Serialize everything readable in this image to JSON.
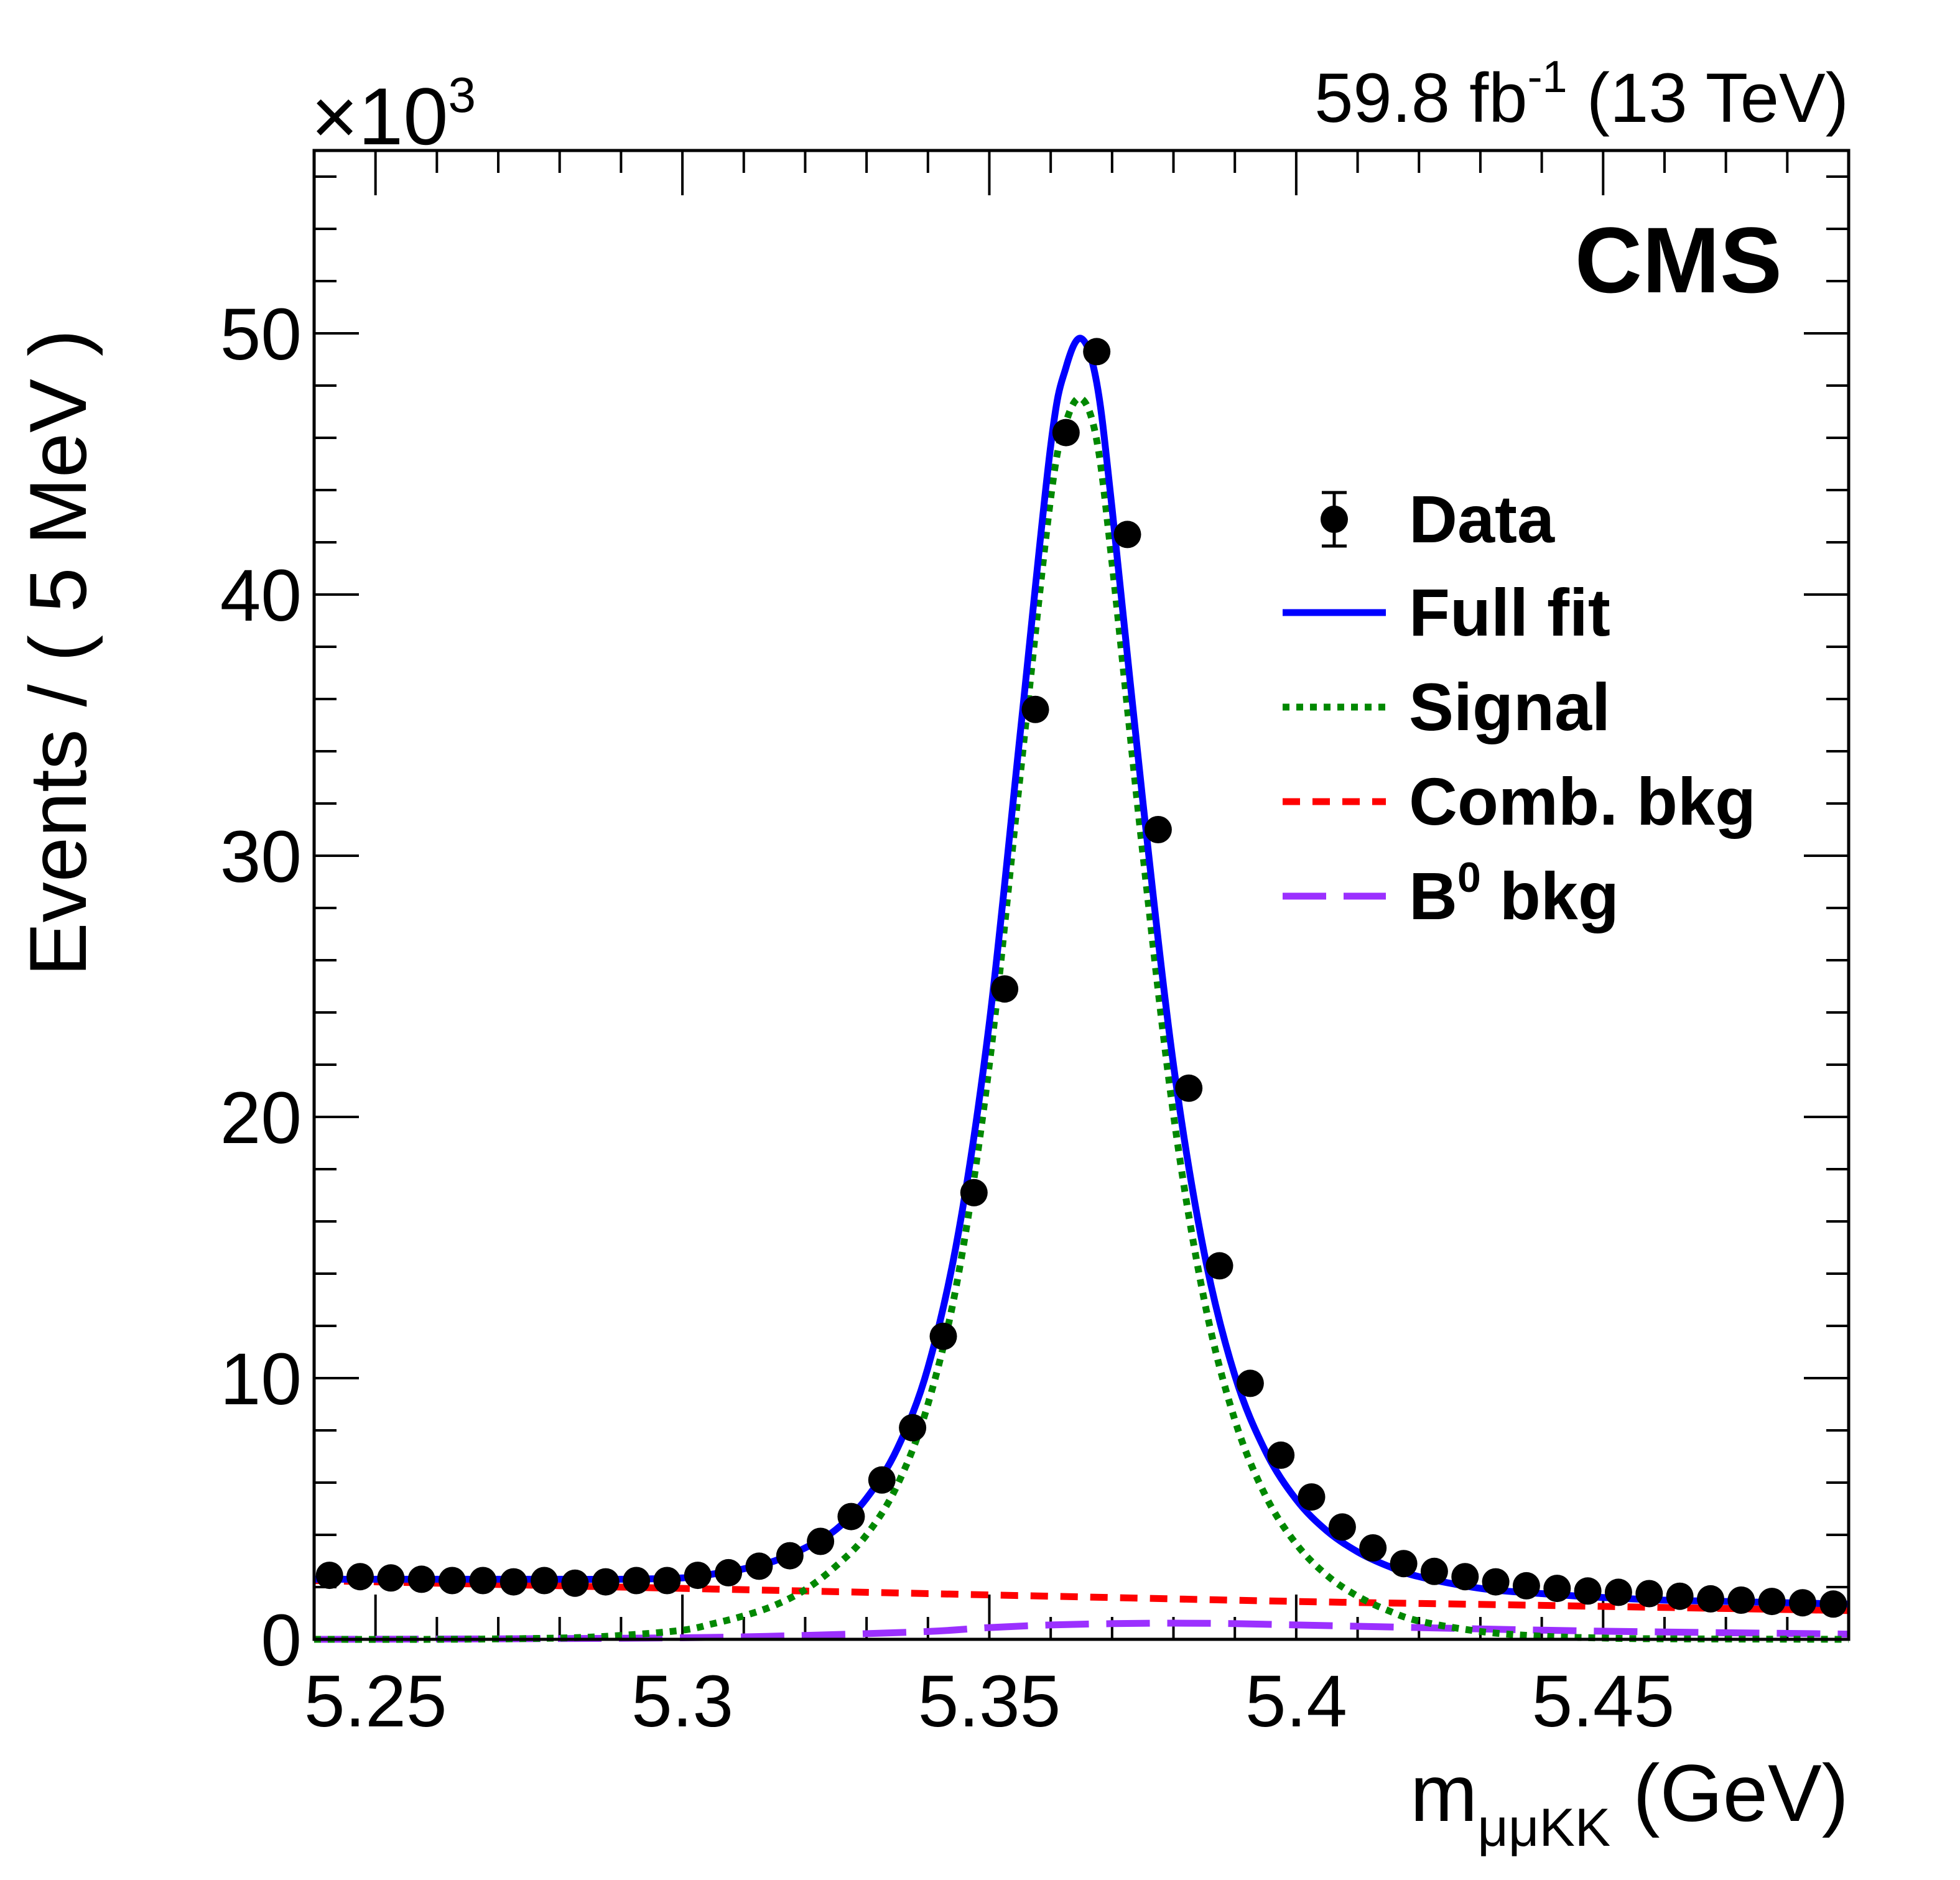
{
  "header": {
    "multiplier": "×10",
    "multiplier_exp": "3",
    "lumi_value": "59.8 fb",
    "lumi_exp": "-1",
    "lumi_energy": "(13 TeV)",
    "experiment": "CMS"
  },
  "colors": {
    "data": "#000000",
    "full_fit": "#0000ff",
    "signal": "#008800",
    "comb_bkg": "#ff0000",
    "b0_bkg": "#9b30ff"
  },
  "legend": {
    "placement": "top-right",
    "data": "Data",
    "full_fit": "Full fit",
    "signal": "Signal",
    "comb_bkg": "Comb. bkg",
    "b0_bkg_main": "B",
    "b0_bkg_sup": "0",
    "b0_bkg_rest": " bkg"
  },
  "chart_data": {
    "type": "scatter",
    "xlabel_main": "m",
    "xlabel_sub": "μμKK",
    "xlabel_unit": " (GeV)",
    "ylabel": "Events / ( 5 MeV )",
    "xlim": [
      5.24,
      5.49
    ],
    "ylim": [
      0,
      57
    ],
    "y_multiplier": 1000,
    "x_ticks": [
      5.25,
      5.3,
      5.35,
      5.4,
      5.45
    ],
    "x_tick_labels": [
      "5.25",
      "5.3",
      "5.35",
      "5.4",
      "5.45"
    ],
    "y_ticks": [
      0,
      10,
      20,
      30,
      40,
      50
    ],
    "y_tick_labels": [
      "0",
      "10",
      "20",
      "30",
      "40",
      "50"
    ],
    "grid": false,
    "series": [
      {
        "name": "Data",
        "kind": "points",
        "x": [
          5.2425,
          5.2475,
          5.2525,
          5.2575,
          5.2625,
          5.2675,
          5.2725,
          5.2775,
          5.2825,
          5.2875,
          5.2925,
          5.2975,
          5.3025,
          5.3075,
          5.3125,
          5.3175,
          5.3225,
          5.3275,
          5.3325,
          5.3375,
          5.3425,
          5.3475,
          5.3525,
          5.3575,
          5.3625,
          5.3675,
          5.3725,
          5.3775,
          5.3825,
          5.3875,
          5.3925,
          5.3975,
          5.4025,
          5.4075,
          5.4125,
          5.4175,
          5.4225,
          5.4275,
          5.4325,
          5.4375,
          5.4425,
          5.4475,
          5.4525,
          5.4575,
          5.4625,
          5.4675,
          5.4725,
          5.4775,
          5.4825,
          5.4875
        ],
        "y": [
          2.45,
          2.4,
          2.35,
          2.3,
          2.25,
          2.25,
          2.2,
          2.25,
          2.15,
          2.2,
          2.25,
          2.25,
          2.45,
          2.55,
          2.8,
          3.2,
          3.75,
          4.7,
          6.1,
          8.1,
          11.6,
          17.1,
          24.9,
          35.6,
          46.2,
          49.3,
          42.3,
          31.0,
          21.1,
          14.3,
          9.8,
          7.05,
          5.45,
          4.3,
          3.5,
          2.9,
          2.6,
          2.4,
          2.2,
          2.05,
          1.95,
          1.85,
          1.8,
          1.75,
          1.65,
          1.55,
          1.5,
          1.45,
          1.4,
          1.35
        ]
      },
      {
        "name": "Full fit",
        "kind": "curve",
        "x": [
          5.24,
          5.25,
          5.26,
          5.27,
          5.28,
          5.29,
          5.3,
          5.305,
          5.31,
          5.315,
          5.32,
          5.325,
          5.33,
          5.335,
          5.34,
          5.345,
          5.35,
          5.355,
          5.36,
          5.3625,
          5.365,
          5.3675,
          5.37,
          5.375,
          5.38,
          5.385,
          5.39,
          5.395,
          5.4,
          5.405,
          5.41,
          5.415,
          5.42,
          5.43,
          5.44,
          5.45,
          5.46,
          5.47,
          5.48,
          5.49
        ],
        "y": [
          2.3,
          2.3,
          2.3,
          2.3,
          2.3,
          2.3,
          2.35,
          2.5,
          2.7,
          3.0,
          3.5,
          4.2,
          5.4,
          7.3,
          10.4,
          15.6,
          23.6,
          34.6,
          45.7,
          48.7,
          49.8,
          48.1,
          43.3,
          32.1,
          22.0,
          14.8,
          10.1,
          7.2,
          5.35,
          4.15,
          3.35,
          2.8,
          2.4,
          1.95,
          1.75,
          1.6,
          1.5,
          1.45,
          1.4,
          1.35
        ]
      },
      {
        "name": "Signal",
        "kind": "curve",
        "x": [
          5.24,
          5.26,
          5.28,
          5.29,
          5.3,
          5.305,
          5.31,
          5.315,
          5.32,
          5.325,
          5.33,
          5.335,
          5.34,
          5.345,
          5.35,
          5.355,
          5.36,
          5.3625,
          5.365,
          5.3675,
          5.37,
          5.375,
          5.38,
          5.385,
          5.39,
          5.395,
          5.4,
          5.405,
          5.41,
          5.415,
          5.42,
          5.43,
          5.44,
          5.45,
          5.46,
          5.49
        ],
        "y": [
          0,
          0,
          0.05,
          0.15,
          0.35,
          0.6,
          0.9,
          1.3,
          1.9,
          2.8,
          4.0,
          5.9,
          9.0,
          14.0,
          22.0,
          33.0,
          43.7,
          46.6,
          47.5,
          45.9,
          41.2,
          30.1,
          20.1,
          13.0,
          8.4,
          5.5,
          3.65,
          2.45,
          1.65,
          1.1,
          0.7,
          0.3,
          0.12,
          0.05,
          0.02,
          0
        ]
      },
      {
        "name": "Comb. bkg",
        "kind": "curve",
        "x": [
          5.24,
          5.28,
          5.32,
          5.36,
          5.4,
          5.44,
          5.49
        ],
        "y": [
          2.25,
          2.05,
          1.85,
          1.65,
          1.45,
          1.3,
          1.1
        ]
      },
      {
        "name": "B0 bkg",
        "kind": "curve",
        "x": [
          5.24,
          5.27,
          5.3,
          5.32,
          5.34,
          5.35,
          5.36,
          5.37,
          5.38,
          5.39,
          5.4,
          5.42,
          5.44,
          5.46,
          5.49
        ],
        "y": [
          0,
          0.02,
          0.06,
          0.15,
          0.3,
          0.45,
          0.55,
          0.6,
          0.62,
          0.6,
          0.55,
          0.45,
          0.35,
          0.28,
          0.2
        ]
      }
    ]
  }
}
